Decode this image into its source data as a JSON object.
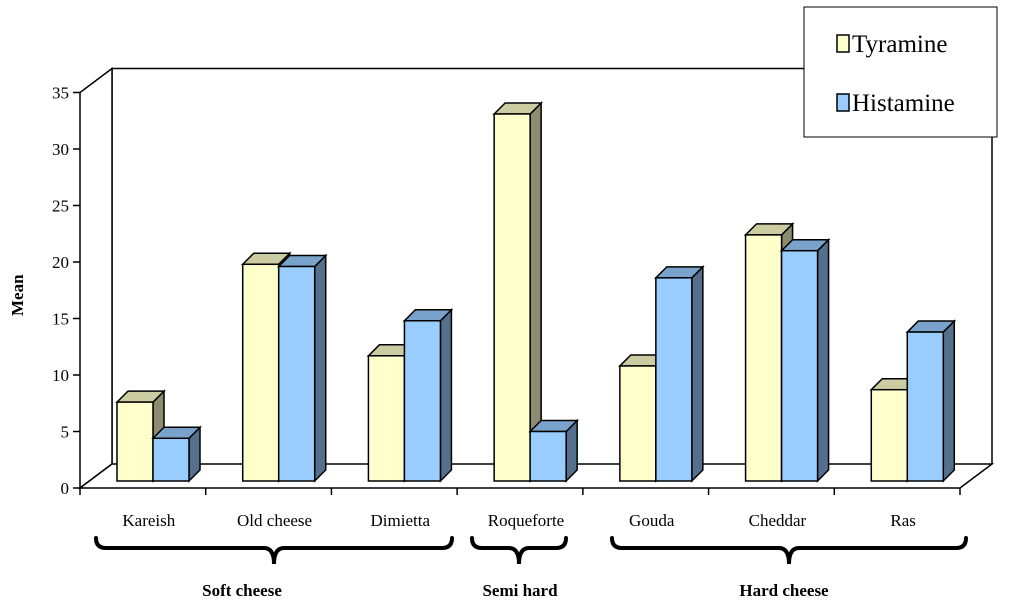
{
  "chart_data": {
    "type": "bar",
    "ylabel": "Mean",
    "ylim": [
      0,
      35
    ],
    "yticks": [
      0,
      5,
      10,
      15,
      20,
      25,
      30,
      35
    ],
    "categories": [
      "Kareish",
      "Old cheese",
      "Dimietta",
      "Roqueforte",
      "Gouda",
      "Cheddar",
      "Ras"
    ],
    "groups": [
      {
        "label": "Soft cheese",
        "categories": [
          "Kareish",
          "Old cheese",
          "Dimietta"
        ]
      },
      {
        "label": "Semi hard",
        "categories": [
          "Roqueforte"
        ]
      },
      {
        "label": "Hard cheese",
        "categories": [
          "Gouda",
          "Cheddar",
          "Ras"
        ]
      }
    ],
    "series": [
      {
        "name": "Tyramine",
        "color": "#ffffcc",
        "values": [
          7.6,
          19.8,
          11.7,
          33.1,
          10.8,
          22.4,
          8.7
        ]
      },
      {
        "name": "Histamine",
        "color": "#99ccff",
        "values": [
          4.4,
          19.6,
          14.8,
          5.0,
          18.6,
          21.0,
          13.8
        ]
      }
    ],
    "legend": "top-right",
    "grid": false,
    "style": "3d-clustered-column"
  }
}
